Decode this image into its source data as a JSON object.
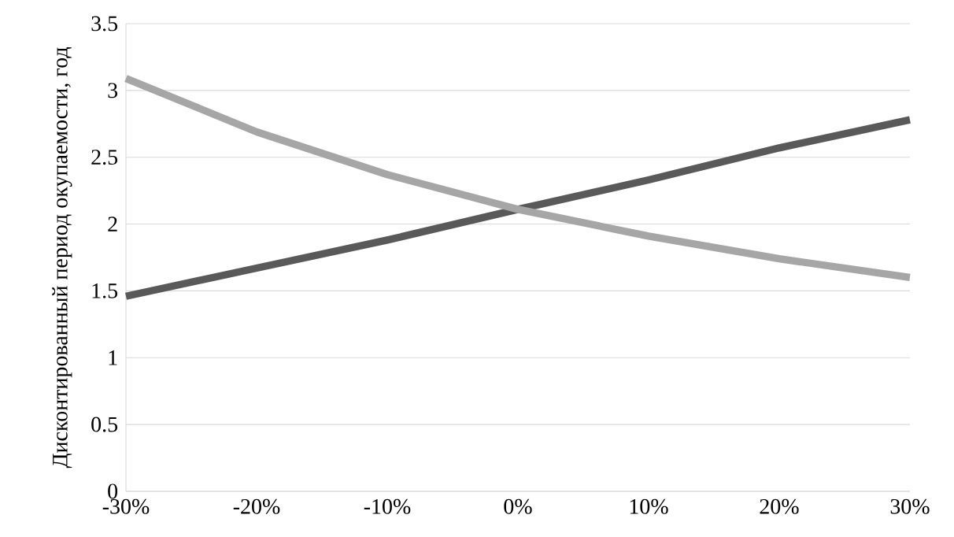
{
  "chart_data": {
    "type": "line",
    "ylabel": "Дисконтированный период окупаемости, год",
    "categories": [
      "-30%",
      "-20%",
      "-10%",
      "0%",
      "10%",
      "20%",
      "30%"
    ],
    "series": [
      {
        "color": "#595959",
        "values": [
          1.46,
          1.67,
          1.88,
          2.11,
          2.33,
          2.57,
          2.78
        ]
      },
      {
        "color": "#a6a6a6",
        "values": [
          3.09,
          2.69,
          2.37,
          2.11,
          1.91,
          1.74,
          1.6
        ]
      }
    ],
    "ylim": [
      0,
      3.5
    ],
    "yticks": [
      0,
      0.5,
      1,
      1.5,
      2,
      2.5,
      3,
      3.5
    ],
    "grid": "y"
  }
}
